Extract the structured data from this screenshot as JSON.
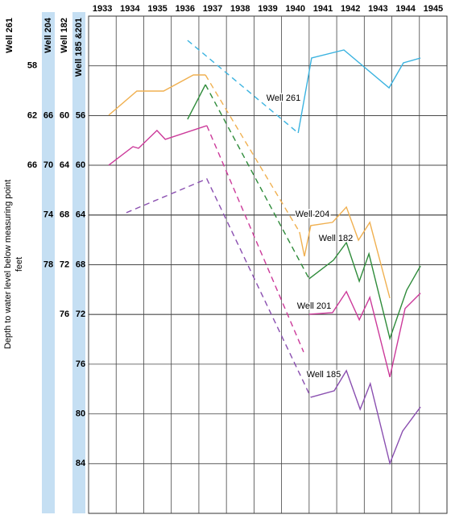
{
  "chart_data": {
    "type": "line",
    "ylabel": "Depth to water level below measuring point",
    "ylabel_units": "feet",
    "xlim": [
      1933,
      1946
    ],
    "xticks": [
      1933,
      1934,
      1935,
      1936,
      1937,
      1938,
      1939,
      1940,
      1941,
      1942,
      1943,
      1944,
      1945
    ],
    "yaxes": [
      {
        "name": "Well 261",
        "ylim": [
          54,
          94
        ],
        "yticks": [
          58,
          62,
          66
        ],
        "inverted": true
      },
      {
        "name": "Well 204",
        "ylim": [
          58,
          98
        ],
        "yticks": [
          66,
          70,
          74,
          78
        ],
        "inverted": true
      },
      {
        "name": "Well 182",
        "ylim": [
          52,
          92
        ],
        "yticks": [
          60,
          64,
          68,
          72,
          76
        ],
        "inverted": true
      },
      {
        "name": "Well 185 &201",
        "ylim": [
          48,
          88
        ],
        "yticks": [
          56,
          60,
          64,
          68,
          72,
          76,
          80,
          84
        ],
        "inverted": true
      }
    ],
    "grid": true,
    "series": [
      {
        "name": "Well 261",
        "color": "#3bb3e0",
        "axis": 0,
        "segments": [
          {
            "style": "dashed",
            "x": [
              1936.59,
              1940.6
            ],
            "values": [
              55.95,
              63.4
            ]
          },
          {
            "style": "solid",
            "x": [
              1940.6,
              1941.09,
              1942.26,
              1943.9,
              1944.42,
              1945.04
            ],
            "values": [
              63.4,
              57.37,
              56.72,
              59.77,
              57.76,
              57.37
            ]
          }
        ]
      },
      {
        "name": "Well 204",
        "color": "#f0b050",
        "axis": 1,
        "segments": [
          {
            "style": "solid",
            "x": [
              1933.73,
              1934.75,
              1935.72,
              1936.8,
              1937.24
            ],
            "values": [
              65.97,
              64.03,
              64.03,
              62.73,
              62.73
            ]
          },
          {
            "style": "dashed",
            "x": [
              1937.24,
              1940.65
            ],
            "values": [
              62.73,
              75.37
            ]
          },
          {
            "style": "solid",
            "x": [
              1940.65,
              1940.83,
              1941.06,
              1941.85,
              1942.35,
              1942.79,
              1943.2,
              1943.93
            ],
            "values": [
              75.37,
              77.32,
              74.85,
              74.59,
              73.36,
              76.02,
              74.59,
              80.69
            ]
          }
        ]
      },
      {
        "name": "Well 182",
        "color": "#2e8b3a",
        "axis": 2,
        "segments": [
          {
            "style": "solid",
            "x": [
              1936.59,
              1937.24
            ],
            "values": [
              60.3,
              57.51
            ]
          },
          {
            "style": "dashed",
            "x": [
              1937.24,
              1941.0
            ],
            "values": [
              57.51,
              73.13
            ]
          },
          {
            "style": "solid",
            "x": [
              1941.0,
              1941.88,
              1942.35,
              1942.82,
              1943.17,
              1943.93,
              1944.54,
              1945.04
            ],
            "values": [
              73.13,
              71.64,
              70.22,
              73.33,
              71.12,
              77.93,
              74.04,
              72.1
            ]
          }
        ]
      },
      {
        "name": "Well 201",
        "color": "#cc3a9a",
        "axis": 3,
        "segments": [
          {
            "style": "solid",
            "x": [
              1933.73,
              1934.61,
              1934.81,
              1935.48,
              1935.78,
              1937.29
            ],
            "values": [
              59.99,
              58.5,
              58.63,
              57.2,
              57.91,
              56.81
            ]
          },
          {
            "style": "dashed",
            "x": [
              1937.29,
              1940.8
            ],
            "values": [
              56.81,
              75.02
            ]
          },
          {
            "style": "solid",
            "x": [
              1941.0,
              1941.85,
              1942.35,
              1942.82,
              1943.2,
              1943.93,
              1944.48,
              1945.04
            ],
            "values": [
              71.98,
              71.85,
              70.16,
              72.43,
              70.62,
              77.03,
              71.52,
              70.29
            ]
          }
        ]
      },
      {
        "name": "Well 185",
        "color": "#8a4fb0",
        "axis": 3,
        "segments": [
          {
            "style": "dashed",
            "x": [
              1934.37,
              1937.29,
              1941.06
            ],
            "values": [
              63.81,
              61.09,
              78.66
            ]
          },
          {
            "style": "solid",
            "x": [
              1941.06,
              1941.91,
              1942.35,
              1942.85,
              1943.22,
              1943.93,
              1944.39,
              1945.04
            ],
            "values": [
              78.66,
              78.14,
              76.52,
              79.63,
              77.56,
              83.98,
              81.39,
              79.44
            ]
          }
        ]
      }
    ]
  }
}
